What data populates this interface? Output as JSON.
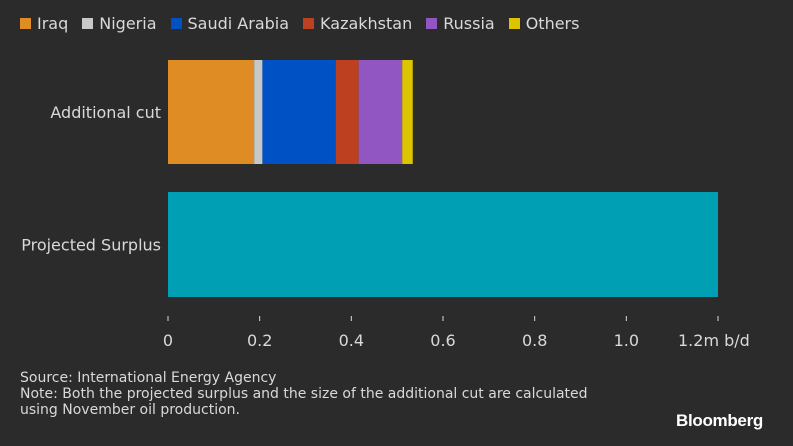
{
  "chart_data": {
    "type": "bar",
    "orientation": "horizontal",
    "stacked": true,
    "categories": [
      "Additional cut",
      "Projected Surplus"
    ],
    "series": [
      {
        "name": "Iraq",
        "color": "#e08c24",
        "values": [
          0.188,
          0
        ]
      },
      {
        "name": "Nigeria",
        "color": "#c8c8c8",
        "values": [
          0.018,
          0
        ]
      },
      {
        "name": "Saudi Arabia",
        "color": "#0051c3",
        "values": [
          0.16,
          0
        ]
      },
      {
        "name": "Kazakhstan",
        "color": "#bd4121",
        "values": [
          0.05,
          0
        ]
      },
      {
        "name": "Russia",
        "color": "#9256c2",
        "values": [
          0.095,
          0
        ]
      },
      {
        "name": "Others",
        "color": "#dcc500",
        "values": [
          0.023,
          0
        ]
      },
      {
        "color": "#009fb4",
        "values": [
          0,
          1.2
        ]
      }
    ],
    "xlim": [
      0,
      1.2
    ],
    "ticks": [
      {
        "value": 0,
        "label": "0"
      },
      {
        "value": 0.2,
        "label": "0.2"
      },
      {
        "value": 0.4,
        "label": "0.4"
      },
      {
        "value": 0.6,
        "label": "0.6"
      },
      {
        "value": 0.8,
        "label": "0.8"
      },
      {
        "value": 1.0,
        "label": "1.0"
      },
      {
        "value": 1.2,
        "label": "1.2m b/d"
      }
    ],
    "grid": false,
    "legend_position": "top-left"
  },
  "footer": {
    "source": "Source: International Energy Agency",
    "note_line1": "Note: Both the projected surplus and the size of the additional cut are calculated",
    "note_line2": "using November oil production."
  },
  "brand": "Bloomberg"
}
